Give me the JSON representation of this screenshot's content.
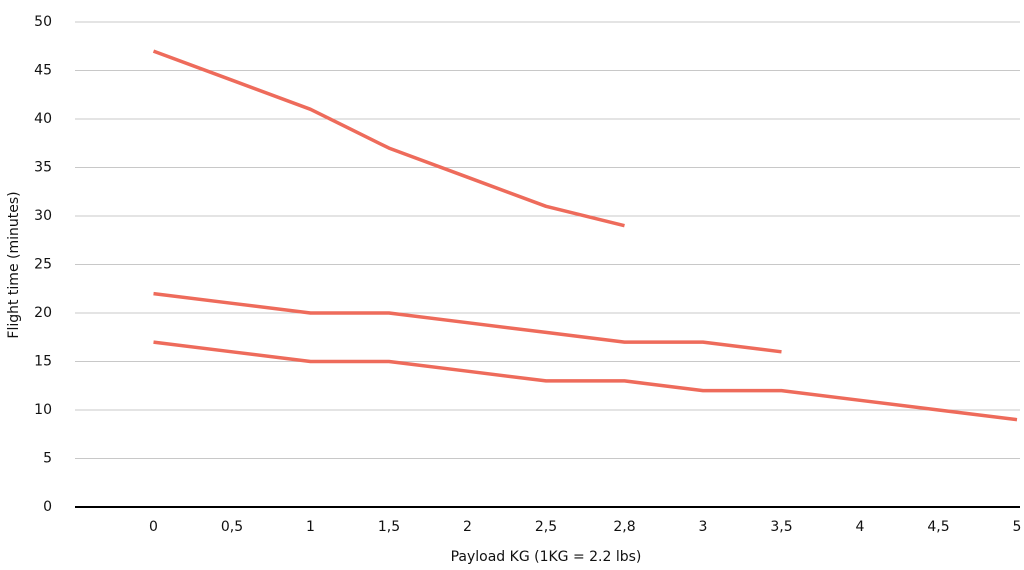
{
  "chart_data": {
    "type": "line",
    "x_label": "Payload KG (1KG = 2.2 lbs)",
    "y_label": "Flight time (minutes)",
    "categories": [
      "0",
      "0,5",
      "1",
      "1,5",
      "2",
      "2,5",
      "2,8",
      "3",
      "3,5",
      "4",
      "4,5",
      "5"
    ],
    "series": [
      {
        "color": "#ee6b5b",
        "values": [
          47,
          44,
          41,
          37,
          34,
          31,
          29,
          null,
          null,
          null,
          null,
          null
        ]
      },
      {
        "color": "#ee6b5b",
        "values": [
          22,
          21,
          20,
          20,
          19,
          18,
          17,
          17,
          16,
          null,
          null,
          null
        ]
      },
      {
        "color": "#ee6b5b",
        "values": [
          17,
          16,
          15,
          15,
          14,
          13,
          13,
          12,
          12,
          11,
          10,
          9
        ]
      }
    ],
    "ylim": [
      0,
      50
    ],
    "yticks": [
      0,
      5,
      10,
      15,
      20,
      25,
      30,
      35,
      40,
      45,
      50
    ],
    "grid": true
  }
}
